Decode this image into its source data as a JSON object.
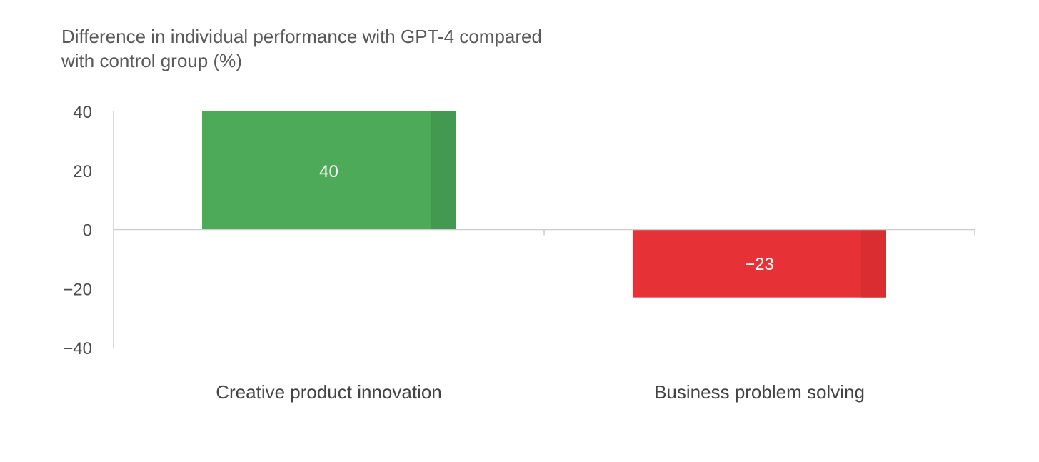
{
  "chart_data": {
    "type": "bar",
    "title": "Difference in individual performance with GPT-4 compared with control group (%)",
    "categories": [
      "Creative product innovation",
      "Business problem solving"
    ],
    "values": [
      40,
      -23
    ],
    "value_labels": [
      "40",
      "−23"
    ],
    "colors": [
      "#4caa59",
      "#e63236"
    ],
    "shade_colors": [
      "#43994f",
      "#d82d31"
    ],
    "ylim": [
      -40,
      40
    ],
    "yticks": [
      40,
      20,
      0,
      -20,
      -40
    ],
    "ytick_labels": [
      "40",
      "20",
      "0",
      "−20",
      "−40"
    ],
    "xlabel": "",
    "ylabel": "",
    "grid": false,
    "legend": "none"
  }
}
